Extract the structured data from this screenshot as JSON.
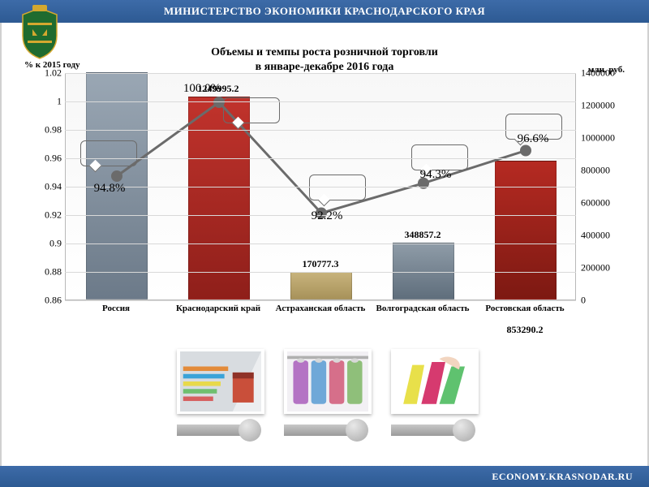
{
  "header": {
    "ministry": "МИНИСТЕРСТВО ЭКОНОМИКИ КРАСНОДАРСКОГО КРАЯ",
    "footer": "ECONOMY.KRASNODAR.RU"
  },
  "title": {
    "line1": "Объемы и темпы роста розничной торговли",
    "line2": "в январе-декабре 2016 года"
  },
  "chart": {
    "type": "bar+line",
    "left_axis_label": "% к 2015 году",
    "right_axis_label": "млн. руб.",
    "left_ticks": [
      "0.86",
      "0.88",
      "0.9",
      "0.92",
      "0.94",
      "0.96",
      "0.98",
      "1",
      "1.02"
    ],
    "right_ticks": [
      "0",
      "200000",
      "400000",
      "600000",
      "800000",
      "1000000",
      "1200000",
      "1400000"
    ],
    "left_ylim": [
      0.86,
      1.02
    ],
    "right_ylim": [
      0,
      1400000
    ],
    "categories": [
      "Россия",
      "Краснодарский край",
      "Астраханская область",
      "Волгоградская область",
      "Ростовская область"
    ],
    "bars": [
      {
        "value": 1400000,
        "label": "",
        "color_top": "#9aa7b4",
        "color_bot": "#6c7a89",
        "label_y_offset": -18
      },
      {
        "value": 1249995.2,
        "label": "1249995.2",
        "color_top": "#c1332c",
        "color_bot": "#8f1f1a",
        "label_y_offset": -18
      },
      {
        "value": 170777.3,
        "label": "170777.3",
        "color_top": "#c7b37c",
        "color_bot": "#a8925a",
        "label_y_offset": -18
      },
      {
        "value": 348857.2,
        "label": "348857.2",
        "color_top": "#8f9ca8",
        "color_bot": "#5f6e7c",
        "label_y_offset": -18
      },
      {
        "value": 853290.2,
        "label": "853290.2",
        "color_top": "#b52a22",
        "color_bot": "#7d1912",
        "label_y_offset": 200
      }
    ],
    "bar_width_pct": 12,
    "line": {
      "points_pct": [
        94.8,
        100,
        92.2,
        94.3,
        96.6
      ],
      "labels": [
        "94.8%",
        "100.0%",
        "92.2%",
        "94.3%",
        "96.6%"
      ],
      "color": "#6b6b6b",
      "stroke_width": 3,
      "marker_radius": 7
    },
    "plot_bg": "#f7f7f7",
    "grid_color": "#d9d9d9"
  },
  "cards": {
    "img1_colors": [
      "#e38b3a",
      "#3aa3d8",
      "#e8d94a"
    ],
    "img2_colors": [
      "#b473c4",
      "#6fa8d8",
      "#d66f8a"
    ],
    "img3_colors": [
      "#e8e04a",
      "#d63a6f",
      "#5fc26f"
    ]
  },
  "emblem_colors": {
    "shield": "#1f6b2f",
    "crown": "#d4a82f"
  }
}
